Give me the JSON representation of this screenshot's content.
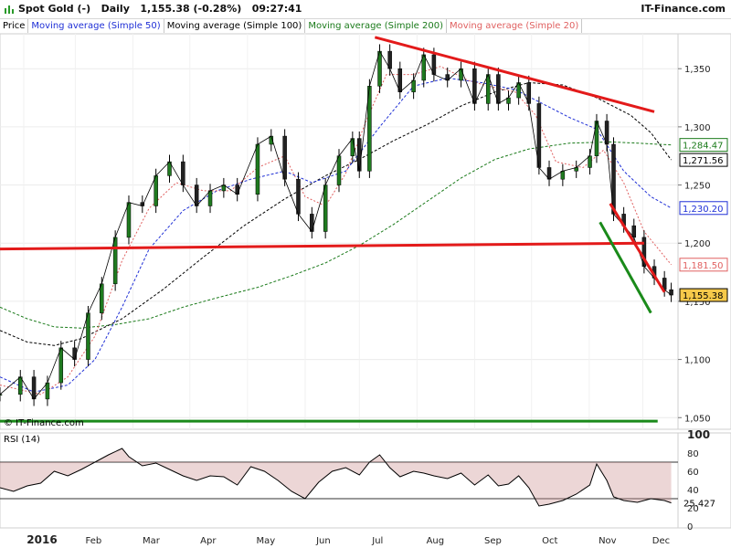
{
  "header": {
    "title": "Spot Gold (-)   Daily   1,155.38 (-0.28%)   09:27:41",
    "brand": "IT-Finance.com"
  },
  "legend": [
    {
      "label": "Price",
      "color": "#000000"
    },
    {
      "label": "Moving average (Simple 50)",
      "color": "#1f2fd6"
    },
    {
      "label": "Moving average (Simple 100)",
      "color": "#000000"
    },
    {
      "label": "Moving average (Simple 200)",
      "color": "#1a7a1a"
    },
    {
      "label": "Moving average (Simple 20)",
      "color": "#e06060"
    }
  ],
  "copyright": "© IT-Finance.com",
  "rsi_label": "RSI (14)",
  "chart_data": {
    "type": "line",
    "ylim": [
      1040,
      1380
    ],
    "y_ticks": [
      1050,
      1100,
      1150,
      1200,
      1250,
      1300,
      1350
    ],
    "y_tick_labels": [
      "1,050",
      "1,100",
      "1,150",
      "1,200",
      "1,250",
      "1,300",
      "1,350"
    ],
    "x_months": [
      "2016",
      "Feb",
      "Mar",
      "Apr",
      "May",
      "Jun",
      "Jul",
      "Aug",
      "Sep",
      "Oct",
      "Nov",
      "Dec"
    ],
    "x_month_pos": [
      0.062,
      0.138,
      0.223,
      0.307,
      0.392,
      0.477,
      0.557,
      0.642,
      0.727,
      0.811,
      0.896,
      0.975
    ],
    "price": [
      [
        0.0,
        1070
      ],
      [
        0.03,
        1085
      ],
      [
        0.05,
        1066
      ],
      [
        0.07,
        1080
      ],
      [
        0.09,
        1110
      ],
      [
        0.11,
        1100
      ],
      [
        0.13,
        1140
      ],
      [
        0.15,
        1165
      ],
      [
        0.17,
        1205
      ],
      [
        0.19,
        1235
      ],
      [
        0.21,
        1232
      ],
      [
        0.23,
        1258
      ],
      [
        0.25,
        1270
      ],
      [
        0.27,
        1250
      ],
      [
        0.29,
        1232
      ],
      [
        0.31,
        1245
      ],
      [
        0.33,
        1250
      ],
      [
        0.35,
        1242
      ],
      [
        0.38,
        1285
      ],
      [
        0.4,
        1292
      ],
      [
        0.42,
        1255
      ],
      [
        0.44,
        1225
      ],
      [
        0.46,
        1210
      ],
      [
        0.48,
        1250
      ],
      [
        0.5,
        1275
      ],
      [
        0.52,
        1290
      ],
      [
        0.53,
        1262
      ],
      [
        0.545,
        1335
      ],
      [
        0.56,
        1365
      ],
      [
        0.575,
        1350
      ],
      [
        0.59,
        1330
      ],
      [
        0.61,
        1340
      ],
      [
        0.625,
        1362
      ],
      [
        0.64,
        1345
      ],
      [
        0.66,
        1340
      ],
      [
        0.68,
        1350
      ],
      [
        0.7,
        1320
      ],
      [
        0.72,
        1345
      ],
      [
        0.735,
        1320
      ],
      [
        0.75,
        1325
      ],
      [
        0.765,
        1338
      ],
      [
        0.78,
        1320
      ],
      [
        0.795,
        1265
      ],
      [
        0.81,
        1255
      ],
      [
        0.83,
        1262
      ],
      [
        0.85,
        1265
      ],
      [
        0.87,
        1275
      ],
      [
        0.88,
        1305
      ],
      [
        0.895,
        1285
      ],
      [
        0.905,
        1225
      ],
      [
        0.92,
        1215
      ],
      [
        0.935,
        1205
      ],
      [
        0.95,
        1180
      ],
      [
        0.965,
        1170
      ],
      [
        0.98,
        1160
      ],
      [
        0.99,
        1155.38
      ]
    ],
    "sma20": [
      [
        0.0,
        1078
      ],
      [
        0.06,
        1070
      ],
      [
        0.1,
        1085
      ],
      [
        0.14,
        1120
      ],
      [
        0.18,
        1185
      ],
      [
        0.22,
        1230
      ],
      [
        0.26,
        1252
      ],
      [
        0.3,
        1245
      ],
      [
        0.34,
        1245
      ],
      [
        0.38,
        1265
      ],
      [
        0.42,
        1275
      ],
      [
        0.45,
        1240
      ],
      [
        0.48,
        1232
      ],
      [
        0.51,
        1260
      ],
      [
        0.54,
        1305
      ],
      [
        0.57,
        1345
      ],
      [
        0.61,
        1345
      ],
      [
        0.65,
        1352
      ],
      [
        0.69,
        1340
      ],
      [
        0.72,
        1335
      ],
      [
        0.76,
        1330
      ],
      [
        0.79,
        1310
      ],
      [
        0.82,
        1270
      ],
      [
        0.86,
        1265
      ],
      [
        0.89,
        1280
      ],
      [
        0.92,
        1252
      ],
      [
        0.95,
        1210
      ],
      [
        0.99,
        1181.5
      ]
    ],
    "sma50": [
      [
        0.0,
        1085
      ],
      [
        0.05,
        1072
      ],
      [
        0.1,
        1078
      ],
      [
        0.14,
        1100
      ],
      [
        0.18,
        1145
      ],
      [
        0.22,
        1195
      ],
      [
        0.27,
        1228
      ],
      [
        0.32,
        1245
      ],
      [
        0.37,
        1255
      ],
      [
        0.42,
        1262
      ],
      [
        0.46,
        1252
      ],
      [
        0.51,
        1262
      ],
      [
        0.56,
        1300
      ],
      [
        0.61,
        1335
      ],
      [
        0.66,
        1342
      ],
      [
        0.71,
        1338
      ],
      [
        0.76,
        1332
      ],
      [
        0.8,
        1320
      ],
      [
        0.84,
        1308
      ],
      [
        0.88,
        1298
      ],
      [
        0.92,
        1262
      ],
      [
        0.96,
        1240
      ],
      [
        0.99,
        1230.2
      ]
    ],
    "sma100": [
      [
        0.0,
        1125
      ],
      [
        0.04,
        1115
      ],
      [
        0.08,
        1112
      ],
      [
        0.12,
        1118
      ],
      [
        0.18,
        1135
      ],
      [
        0.24,
        1160
      ],
      [
        0.3,
        1188
      ],
      [
        0.36,
        1215
      ],
      [
        0.42,
        1238
      ],
      [
        0.48,
        1258
      ],
      [
        0.53,
        1272
      ],
      [
        0.58,
        1288
      ],
      [
        0.63,
        1302
      ],
      [
        0.68,
        1318
      ],
      [
        0.73,
        1330
      ],
      [
        0.78,
        1338
      ],
      [
        0.83,
        1336
      ],
      [
        0.88,
        1325
      ],
      [
        0.93,
        1310
      ],
      [
        0.96,
        1295
      ],
      [
        0.99,
        1271.56
      ]
    ],
    "sma200": [
      [
        0.0,
        1145
      ],
      [
        0.04,
        1135
      ],
      [
        0.08,
        1128
      ],
      [
        0.12,
        1127
      ],
      [
        0.17,
        1130
      ],
      [
        0.22,
        1135
      ],
      [
        0.27,
        1145
      ],
      [
        0.32,
        1153
      ],
      [
        0.38,
        1162
      ],
      [
        0.43,
        1172
      ],
      [
        0.48,
        1183
      ],
      [
        0.53,
        1198
      ],
      [
        0.58,
        1216
      ],
      [
        0.63,
        1236
      ],
      [
        0.68,
        1256
      ],
      [
        0.73,
        1272
      ],
      [
        0.78,
        1281
      ],
      [
        0.84,
        1286
      ],
      [
        0.9,
        1287
      ],
      [
        0.94,
        1286
      ],
      [
        0.99,
        1284.47
      ]
    ],
    "trendlines": [
      {
        "color": "#e31a1a",
        "points": [
          [
            0.553,
            1377
          ],
          [
            0.965,
            1313
          ]
        ]
      },
      {
        "color": "#e31a1a",
        "points": [
          [
            0.0,
            1195
          ],
          [
            0.95,
            1200
          ]
        ]
      },
      {
        "color": "#e31a1a",
        "points": [
          [
            0.9,
            1234
          ],
          [
            0.98,
            1158
          ]
        ]
      },
      {
        "color": "#1a8a1a",
        "points": [
          [
            0.885,
            1218
          ],
          [
            0.96,
            1140
          ]
        ]
      },
      {
        "color": "#1a8a1a",
        "points": [
          [
            0.0,
            1047
          ],
          [
            0.97,
            1047
          ]
        ]
      }
    ],
    "last_values": [
      {
        "label": "1,284.47",
        "value": 1284.47,
        "color": "#1a7a1a",
        "bg": "#ffffff"
      },
      {
        "label": "1,271.56",
        "value": 1271.56,
        "color": "#000000",
        "bg": "#ffffff"
      },
      {
        "label": "1,230.20",
        "value": 1230.2,
        "color": "#1f2fd6",
        "bg": "#ffffff"
      },
      {
        "label": "1,181.50",
        "value": 1181.5,
        "color": "#e06060",
        "bg": "#ffffff"
      },
      {
        "label": "1,155.38",
        "value": 1155.38,
        "color": "#000000",
        "bg": "#f6c94a"
      }
    ],
    "rsi": {
      "ylim": [
        0,
        100
      ],
      "ticks": [
        0,
        20,
        40,
        60,
        80,
        100
      ],
      "levels": [
        30,
        70
      ],
      "last_label": "25.427",
      "values": [
        [
          0.0,
          42
        ],
        [
          0.02,
          38
        ],
        [
          0.04,
          44
        ],
        [
          0.06,
          47
        ],
        [
          0.08,
          60
        ],
        [
          0.1,
          55
        ],
        [
          0.12,
          62
        ],
        [
          0.14,
          70
        ],
        [
          0.16,
          78
        ],
        [
          0.18,
          85
        ],
        [
          0.19,
          76
        ],
        [
          0.21,
          66
        ],
        [
          0.23,
          69
        ],
        [
          0.25,
          62
        ],
        [
          0.27,
          55
        ],
        [
          0.29,
          50
        ],
        [
          0.31,
          55
        ],
        [
          0.33,
          54
        ],
        [
          0.35,
          45
        ],
        [
          0.37,
          65
        ],
        [
          0.39,
          60
        ],
        [
          0.41,
          50
        ],
        [
          0.43,
          38
        ],
        [
          0.45,
          30
        ],
        [
          0.47,
          48
        ],
        [
          0.49,
          60
        ],
        [
          0.51,
          64
        ],
        [
          0.53,
          56
        ],
        [
          0.545,
          70
        ],
        [
          0.56,
          78
        ],
        [
          0.575,
          64
        ],
        [
          0.59,
          54
        ],
        [
          0.61,
          60
        ],
        [
          0.625,
          58
        ],
        [
          0.64,
          55
        ],
        [
          0.66,
          52
        ],
        [
          0.68,
          58
        ],
        [
          0.7,
          45
        ],
        [
          0.72,
          56
        ],
        [
          0.735,
          44
        ],
        [
          0.75,
          46
        ],
        [
          0.765,
          55
        ],
        [
          0.78,
          42
        ],
        [
          0.795,
          22
        ],
        [
          0.81,
          24
        ],
        [
          0.83,
          28
        ],
        [
          0.85,
          35
        ],
        [
          0.87,
          45
        ],
        [
          0.88,
          68
        ],
        [
          0.895,
          50
        ],
        [
          0.905,
          32
        ],
        [
          0.92,
          28
        ],
        [
          0.94,
          26
        ],
        [
          0.96,
          30
        ],
        [
          0.98,
          28
        ],
        [
          0.99,
          25.4
        ]
      ]
    }
  }
}
